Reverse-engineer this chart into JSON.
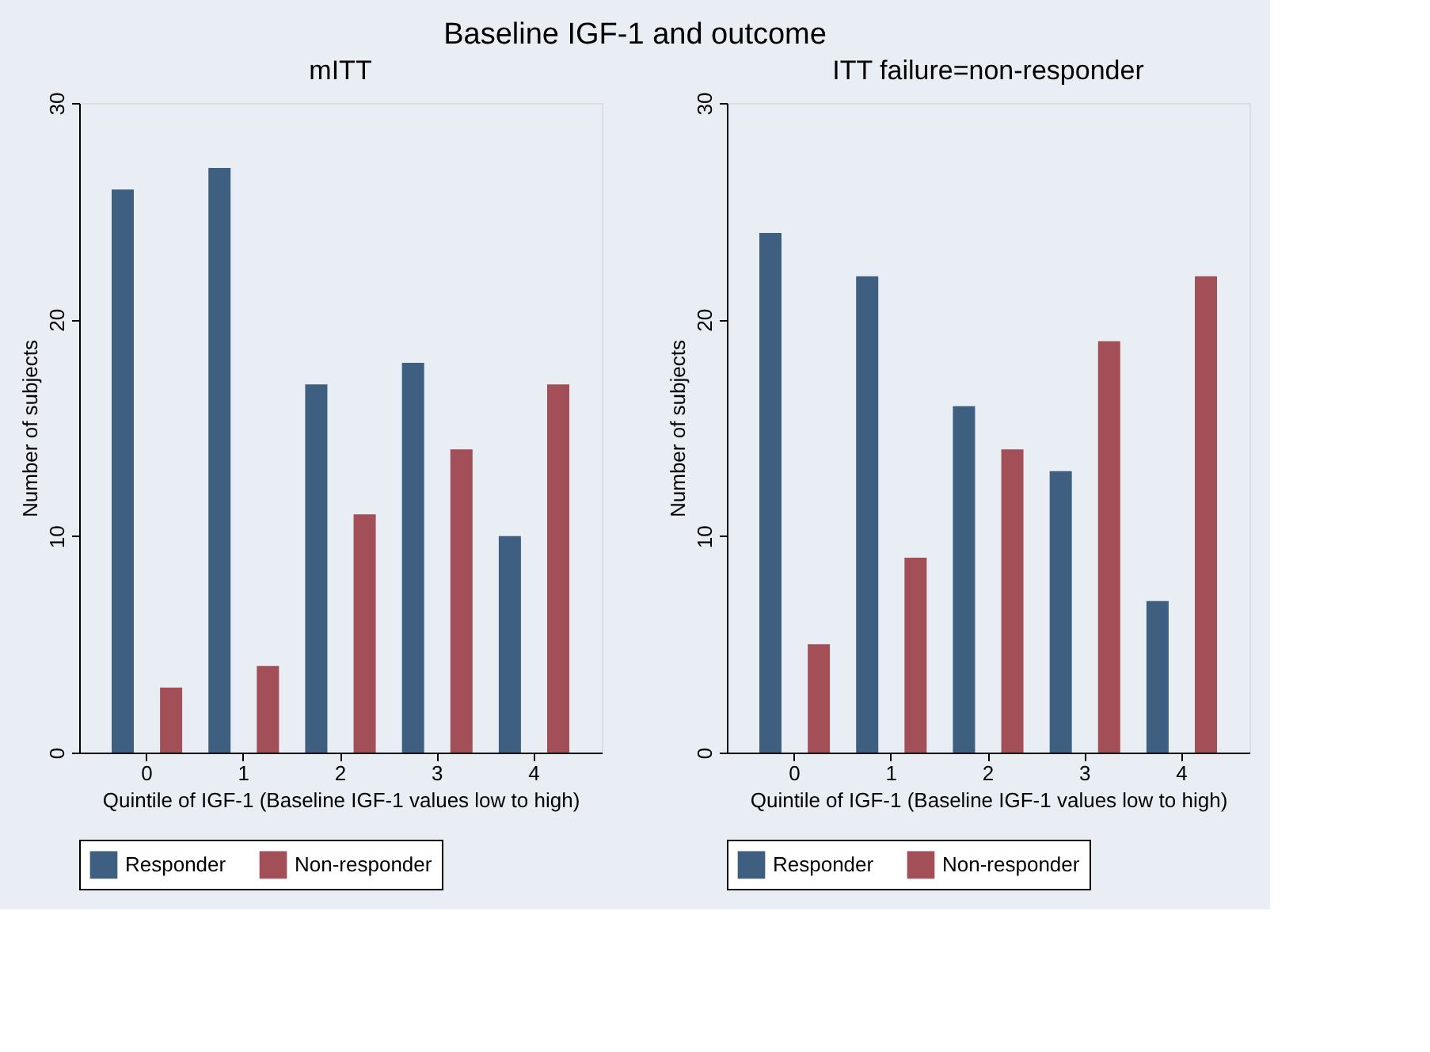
{
  "chart_data": [
    {
      "type": "bar",
      "title": "mITT",
      "annotations": [
        "Baseline IGF-1 and outcome"
      ],
      "xlabel": "Quintile of IGF-1 (Baseline IGF-1  values low to high)",
      "ylabel": "Number of subjects",
      "categories": [
        "0",
        "1",
        "2",
        "3",
        "4"
      ],
      "ylim": [
        0,
        30
      ],
      "yticks": [
        0,
        10,
        20,
        30
      ],
      "legend": "bottom",
      "grid": false,
      "series": [
        {
          "name": "Responder",
          "color": "#3e5f7f",
          "values": [
            26,
            27,
            17,
            18,
            10
          ]
        },
        {
          "name": "Non-responder",
          "color": "#a24f57",
          "values": [
            3,
            4,
            11,
            14,
            17
          ]
        }
      ]
    },
    {
      "type": "bar",
      "title": "ITT failure=non-responder",
      "xlabel": "Quintile of IGF-1 (Baseline IGF-1  values low to high)",
      "ylabel": "Number of subjects",
      "categories": [
        "0",
        "1",
        "2",
        "3",
        "4"
      ],
      "ylim": [
        0,
        30
      ],
      "yticks": [
        0,
        10,
        20,
        30
      ],
      "legend": "bottom",
      "grid": false,
      "series": [
        {
          "name": "Responder",
          "color": "#3e5f7f",
          "values": [
            24,
            22,
            16,
            13,
            7
          ]
        },
        {
          "name": "Non-responder",
          "color": "#a24f57",
          "values": [
            5,
            9,
            14,
            19,
            22
          ]
        }
      ]
    }
  ]
}
